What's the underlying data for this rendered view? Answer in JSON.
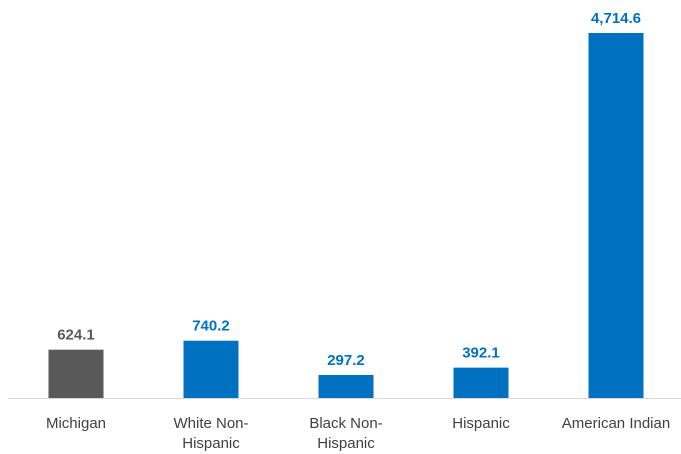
{
  "chart_data": {
    "type": "bar",
    "categories": [
      "Michigan",
      "White Non-Hispanic",
      "Black Non-Hispanic",
      "Hispanic",
      "American Indian"
    ],
    "category_lines": [
      [
        "Michigan"
      ],
      [
        "White Non-",
        "Hispanic"
      ],
      [
        "Black Non-",
        "Hispanic"
      ],
      [
        "Hispanic"
      ],
      [
        "American Indian"
      ]
    ],
    "values": [
      624.1,
      740.2,
      297.2,
      392.1,
      4714.6
    ],
    "value_labels": [
      "624.1",
      "740.2",
      "297.2",
      "392.1",
      "4,714.6"
    ],
    "colors": [
      "#595959",
      "#0070c0",
      "#0070c0",
      "#0070c0",
      "#0070c0"
    ],
    "title": "",
    "xlabel": "",
    "ylabel": "",
    "ylim": [
      0,
      4714.6
    ],
    "grid": false,
    "legend": "none"
  }
}
